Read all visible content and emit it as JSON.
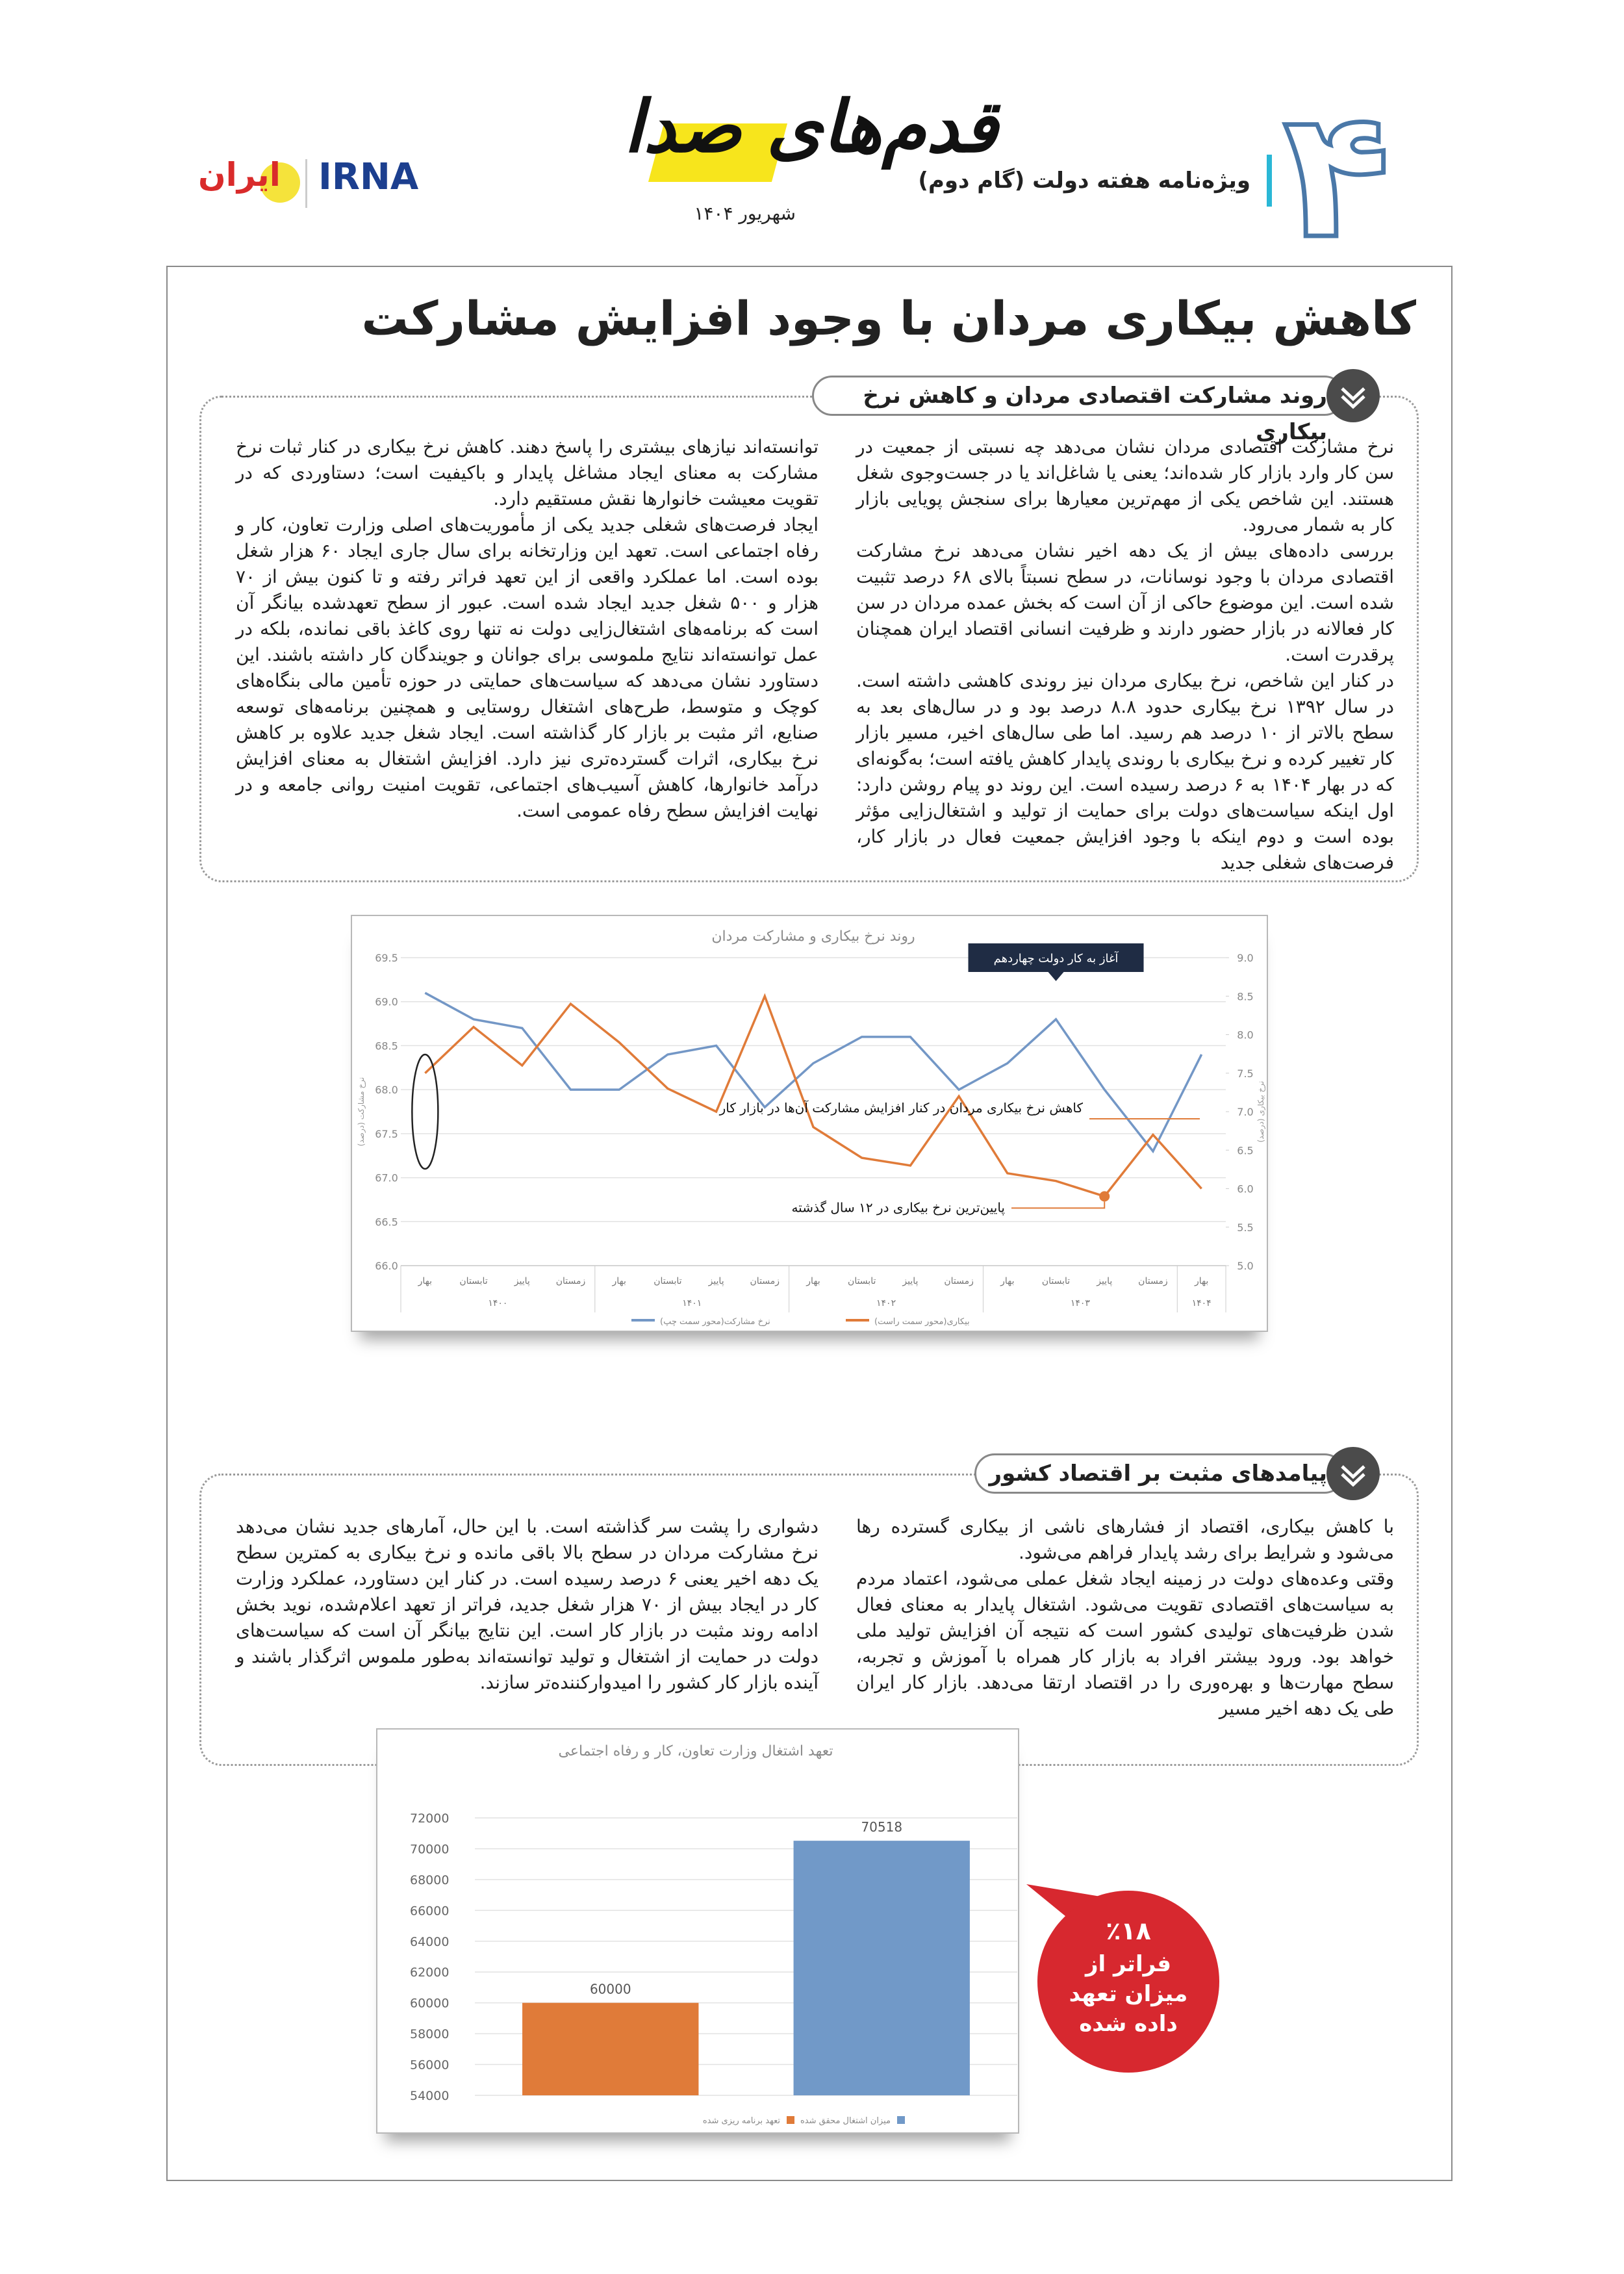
{
  "header": {
    "page_number": "۴",
    "supplement": "ویژه‌نامه هفته دولت (گام دوم)",
    "logo_text": "قدم‌های صدا",
    "irna": "IRNA",
    "iran": "ایران",
    "date": "شهریور ۱۴۰۴"
  },
  "article": {
    "title": "کاهش بیکاری مردان با وجود افزایش مشارکت",
    "sections": [
      {
        "heading": "روند مشارکت اقتصادی مردان و کاهش نرخ بیکاری",
        "columns": [
          [
            "نرخ مشارکت اقتصادی مردان نشان می‌دهد چه نسبتی از جمعیت در سن کار وارد بازار کار شده‌اند؛ یعنی یا شاغل‌اند یا در جست‌وجوی شغل هستند. این شاخص یکی از مهم‌ترین معیارها برای سنجش پویایی بازار کار به شمار می‌رود.",
            "بررسی داده‌های بیش از یک دهه اخیر نشان می‌دهد نرخ مشارکت اقتصادی مردان با وجود نوسانات، در سطح نسبتاً بالای ۶۸ درصد تثبیت شده است. این موضوع حاکی از آن است که بخش عمده مردان در سن کار فعالانه در بازار حضور دارند و ظرفیت انسانی اقتصاد ایران همچنان پرقدرت است.",
            "در کنار این شاخص، نرخ بیکاری مردان نیز روندی کاهشی داشته است. در سال ۱۳۹۲ نرخ بیکاری حدود ۸.۸ درصد بود و در سال‌های بعد به سطح بالاتر از ۱۰ درصد هم رسید. اما طی سال‌های اخیر، مسیر بازار کار تغییر کرده و نرخ بیکاری با روندی پایدار کاهش یافته است؛ به‌گونه‌ای که در بهار ۱۴۰۴ به ۶ درصد رسیده است. این روند دو پیام روشن دارد: اول اینکه سیاست‌های دولت برای حمایت از تولید و اشتغال‌زایی مؤثر بوده است و دوم اینکه با وجود افزایش جمعیت فعال در بازار کار، فرصت‌های شغلی جدید"
          ],
          [
            "توانسته‌اند نیازهای بیشتری را پاسخ دهند. کاهش نرخ بیکاری در کنار ثبات نرخ مشارکت به معنای ایجاد مشاغل پایدار و باکیفیت است؛ دستاوردی که در تقویت معیشت خانوارها نقش مستقیم دارد.",
            "ایجاد فرصت‌های شغلی جدید یکی از مأموریت‌های اصلی وزارت تعاون، کار و رفاه اجتماعی است. تعهد این وزارتخانه برای سال جاری ایجاد ۶۰ هزار شغل بوده است. اما عملکرد واقعی از این تعهد فراتر رفته و تا کنون بیش از ۷۰ هزار و ۵۰۰ شغل جدید ایجاد شده است. عبور از سطح تعهدشده بیانگر آن است که برنامه‌های اشتغال‌زایی دولت نه تنها روی کاغذ باقی نمانده، بلکه در عمل توانسته‌اند نتایج ملموسی برای جوانان و جویندگان کار داشته باشند. این دستاورد نشان می‌دهد که سیاست‌های حمایتی در حوزه تأمین مالی بنگاه‌های کوچک و متوسط، طرح‌های اشتغال روستایی و همچنین برنامه‌های توسعه صنایع، اثر مثبت بر بازار کار گذاشته است. ایجاد شغل جدید علاوه بر کاهش نرخ بیکاری، اثرات گسترده‌تری نیز دارد. افزایش اشتغال به معنای افزایش درآمد خانوارها، کاهش آسیب‌های اجتماعی، تقویت امنیت روانی جامعه و در نهایت افزایش سطح رفاه عمومی است."
          ]
        ]
      },
      {
        "heading": "پیامدهای مثبت بر اقتصاد کشور",
        "columns": [
          [
            "با کاهش بیکاری، اقتصاد از فشارهای ناشی از بیکاری گسترده رها می‌شود و شرایط برای رشد پایدار فراهم می‌شود.",
            "وقتی وعده‌های دولت در زمینه ایجاد شغل عملی می‌شود، اعتماد مردم به سیاست‌های اقتصادی تقویت می‌شود. اشتغال پایدار به معنای فعال شدن ظرفیت‌های تولیدی کشور است که نتیجه آن افزایش تولید ملی خواهد بود. ورود بیشتر افراد به بازار کار همراه با آموزش و تجربه، سطح مهارت‌ها و بهره‌وری را در اقتصاد ارتقا می‌دهد. بازار کار ایران طی یک دهه اخیر مسیر"
          ],
          [
            "دشواری را پشت سر گذاشته است. با این حال، آمارهای جدید نشان می‌دهد نرخ مشارکت مردان در سطح بالا باقی مانده و نرخ بیکاری به کمترین سطح یک دهه اخیر یعنی ۶ درصد رسیده است. در کنار این دستاورد، عملکرد وزارت کار در ایجاد بیش از ۷۰ هزار شغل جدید، فراتر از تعهد اعلام‌شده، نوید بخش ادامه روند مثبت در بازار کار است. این نتایج بیانگر آن است که سیاست‌های دولت در حمایت از اشتغال و تولید توانسته‌اند به‌طور ملموس اثرگذار باشند و آینده بازار کار کشور را امیدوارکننده‌تر سازند."
          ]
        ]
      }
    ]
  },
  "chart_data": [
    {
      "type": "line",
      "title": "روند نرخ بیکاری و مشارکت مردان",
      "categories": [
        "بهار",
        "تابستان",
        "پاییز",
        "زمستان",
        "بهار",
        "تابستان",
        "پاییز",
        "زمستان",
        "بهار",
        "تابستان",
        "پاییز",
        "زمستان",
        "بهار",
        "تابستان",
        "پاییز",
        "زمستان",
        "بهار"
      ],
      "years": [
        "۱۴۰۰",
        "۱۴۰۱",
        "۱۴۰۲",
        "۱۴۰۳",
        "۱۴۰۴"
      ],
      "ylabel": "نرخ مشارکت (درصد)",
      "y2label": "نرخ بیکاری (درصد)",
      "series": [
        {
          "name": "نرخ مشارکت(محور سمت چپ)",
          "color": "#7397c6",
          "values": [
            69.1,
            68.8,
            68.7,
            68.0,
            68.0,
            68.4,
            68.5,
            67.8,
            68.3,
            68.6,
            68.6,
            68.0,
            68.3,
            68.8,
            68.0,
            67.3,
            68.4
          ]
        },
        {
          "name": "بیکاری(محور سمت راست)",
          "color": "#e07b39",
          "axis": "y2",
          "values": [
            7.5,
            8.1,
            7.6,
            8.4,
            7.9,
            7.3,
            7.0,
            8.5,
            6.8,
            6.4,
            6.3,
            7.2,
            6.2,
            6.1,
            5.9,
            6.7,
            6.0
          ]
        }
      ],
      "ylim": [
        66,
        69.5
      ],
      "yticks": [
        {
          "value": 66,
          "label": "66.0"
        },
        {
          "value": 66.5,
          "label": "66.5"
        },
        {
          "value": 67,
          "label": "67.0"
        },
        {
          "value": 67.5,
          "label": "67.5"
        },
        {
          "value": 68,
          "label": "68.0"
        },
        {
          "value": 68.5,
          "label": "68.5"
        },
        {
          "value": 69,
          "label": "69.0"
        },
        {
          "value": 69.5,
          "label": "69.5"
        }
      ],
      "y2lim": [
        5,
        9
      ],
      "y2ticks": [
        {
          "value": 5,
          "label": "5.0"
        },
        {
          "value": 5.5,
          "label": "5.5"
        },
        {
          "value": 6,
          "label": "6.0"
        },
        {
          "value": 6.5,
          "label": "6.5"
        },
        {
          "value": 7,
          "label": "7.0"
        },
        {
          "value": 7.5,
          "label": "7.5"
        },
        {
          "value": 8,
          "label": "8.0"
        },
        {
          "value": 8.5,
          "label": "8.5"
        },
        {
          "value": 9,
          "label": "9.0"
        }
      ],
      "grid": true,
      "annotations": [
        "آغاز به کار دولت چهاردهم",
        "کاهش نرخ بیکاری مردان در کنار افزایش مشارکت آن‌ها در بازار کار",
        "پایین‌ترین نرخ بیکاری در ۱۲ سال گذشته"
      ]
    },
    {
      "type": "bar",
      "title": "تعهد اشتغال وزارت تعاون، کار و رفاه اجتماعی",
      "categories": [
        "تعهد برنامه ریزی شده",
        "میزان اشتغال محقق شده"
      ],
      "values": [
        60000,
        70518
      ],
      "colors": [
        "#e07b39",
        "#7199c8"
      ],
      "ylim": [
        54000,
        72000
      ],
      "yticks": [
        54000,
        56000,
        58000,
        60000,
        62000,
        64000,
        66000,
        68000,
        70000,
        72000
      ],
      "grid": true
    }
  ],
  "callout": {
    "percent": "٪۱۸",
    "text": "فراتر از میزان تعهد داده شده"
  }
}
